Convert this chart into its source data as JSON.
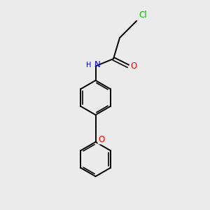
{
  "bg_color": "#ebebeb",
  "bond_color": "#000000",
  "bond_width": 1.4,
  "cl_color": "#00bb00",
  "o_color": "#ff0000",
  "n_color": "#0000ee",
  "font_size_atom": 8.5,
  "font_size_h": 7.0,
  "xlim": [
    0,
    10
  ],
  "ylim": [
    0,
    10
  ]
}
